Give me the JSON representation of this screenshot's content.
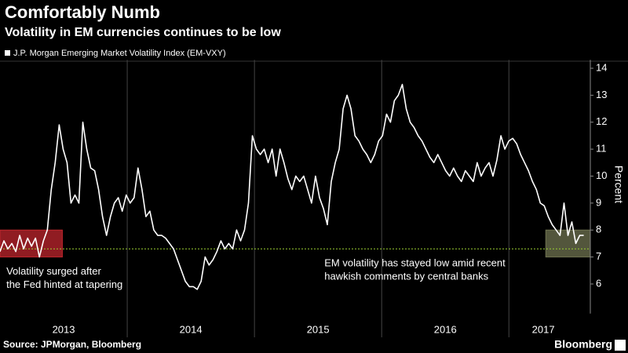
{
  "chart_data": {
    "type": "line",
    "title": "Comfortably Numb",
    "subtitle": "Volatility in EM currencies continues to be low",
    "y_label": "Percent",
    "source": "Source: JPMorgan, Bloomberg",
    "brand": "Bloomberg",
    "xlim": [
      2013,
      2017.64
    ],
    "xticks": [
      {
        "value": 2013,
        "label": "2013"
      },
      {
        "value": 2014,
        "label": "2014"
      },
      {
        "value": 2015,
        "label": "2015"
      },
      {
        "value": 2016,
        "label": "2016"
      },
      {
        "value": 2017,
        "label": "2017"
      }
    ],
    "ylim": [
      4.9,
      14.6
    ],
    "yticks": [
      6,
      7,
      8,
      9,
      10,
      11,
      12,
      13,
      14
    ],
    "reference_line": {
      "value": 7.3,
      "color": "#9acd32"
    },
    "highlights": [
      {
        "x": [
          2013,
          2013.49
        ],
        "y": [
          7,
          8
        ],
        "color": "#c0262d"
      },
      {
        "x": [
          2017.29,
          2017.64
        ],
        "y": [
          7,
          8
        ],
        "color": "#6f7350"
      }
    ],
    "annotations": [
      {
        "lines": [
          "Volatility surged after",
          "the Fed hinted at tapering"
        ],
        "x": 2013.05,
        "y": 6.45
      },
      {
        "lines": [
          "EM volatility has stayed low amid recent",
          "hawkish comments by central banks"
        ],
        "x": 2015.55,
        "y": 6.75
      }
    ],
    "series": [
      {
        "name": "J.P. Morgan Emerging Market Volatility Index (EM-VXY)",
        "color": "#ffffff",
        "x": [
          2013,
          2013.031,
          2013.062,
          2013.093,
          2013.124,
          2013.155,
          2013.186,
          2013.217,
          2013.248,
          2013.279,
          2013.31,
          2013.341,
          2013.372,
          2013.403,
          2013.434,
          2013.465,
          2013.496,
          2013.527,
          2013.558,
          2013.589,
          2013.62,
          2013.651,
          2013.682,
          2013.713,
          2013.744,
          2013.775,
          2013.806,
          2013.837,
          2013.868,
          2013.899,
          2013.93,
          2013.961,
          2013.992,
          2014.023,
          2014.054,
          2014.085,
          2014.116,
          2014.147,
          2014.178,
          2014.209,
          2014.24,
          2014.271,
          2014.302,
          2014.333,
          2014.364,
          2014.395,
          2014.426,
          2014.457,
          2014.488,
          2014.519,
          2014.55,
          2014.581,
          2014.612,
          2014.643,
          2014.674,
          2014.705,
          2014.736,
          2014.767,
          2014.798,
          2014.829,
          2014.86,
          2014.891,
          2014.922,
          2014.953,
          2014.984,
          2015.015,
          2015.046,
          2015.077,
          2015.108,
          2015.139,
          2015.17,
          2015.201,
          2015.232,
          2015.263,
          2015.294,
          2015.325,
          2015.356,
          2015.387,
          2015.418,
          2015.449,
          2015.48,
          2015.511,
          2015.542,
          2015.573,
          2015.604,
          2015.635,
          2015.666,
          2015.697,
          2015.728,
          2015.759,
          2015.79,
          2015.821,
          2015.852,
          2015.883,
          2015.914,
          2015.945,
          2015.976,
          2016.007,
          2016.038,
          2016.069,
          2016.1,
          2016.131,
          2016.162,
          2016.193,
          2016.224,
          2016.255,
          2016.286,
          2016.317,
          2016.348,
          2016.379,
          2016.41,
          2016.441,
          2016.472,
          2016.503,
          2016.534,
          2016.565,
          2016.596,
          2016.627,
          2016.658,
          2016.689,
          2016.72,
          2016.751,
          2016.782,
          2016.813,
          2016.844,
          2016.875,
          2016.906,
          2016.937,
          2016.968,
          2016.999,
          2017.03,
          2017.061,
          2017.092,
          2017.123,
          2017.154,
          2017.185,
          2017.216,
          2017.247,
          2017.278,
          2017.309,
          2017.34,
          2017.371,
          2017.402,
          2017.433,
          2017.464,
          2017.495,
          2017.526,
          2017.557,
          2017.588
        ],
        "values": [
          7.2,
          7.6,
          7.3,
          7.5,
          7.2,
          7.8,
          7.3,
          7.7,
          7.4,
          7.7,
          7.0,
          7.6,
          8.0,
          9.5,
          10.5,
          11.9,
          11.0,
          10.5,
          9.0,
          9.3,
          9.0,
          12.0,
          11.0,
          10.3,
          10.2,
          9.5,
          8.5,
          7.8,
          8.5,
          9.0,
          9.2,
          8.7,
          9.3,
          9.0,
          9.2,
          10.3,
          9.5,
          8.5,
          8.7,
          8.0,
          7.8,
          7.8,
          7.7,
          7.5,
          7.3,
          6.9,
          6.5,
          6.1,
          5.9,
          5.9,
          5.8,
          6.1,
          7.0,
          6.7,
          6.9,
          7.2,
          7.6,
          7.3,
          7.5,
          7.3,
          8.0,
          7.6,
          8.0,
          9.0,
          11.5,
          11.0,
          10.8,
          11.0,
          10.5,
          11.0,
          10.0,
          11.0,
          10.5,
          9.9,
          9.5,
          10.0,
          9.8,
          10.0,
          9.5,
          9.0,
          10.0,
          9.2,
          8.8,
          8.2,
          9.8,
          10.5,
          11.0,
          12.5,
          13.0,
          12.5,
          11.5,
          11.3,
          11.0,
          10.8,
          10.5,
          10.8,
          11.3,
          11.5,
          12.3,
          12.0,
          12.8,
          13.0,
          13.4,
          12.5,
          12.0,
          11.8,
          11.5,
          11.3,
          11.0,
          10.7,
          10.5,
          10.8,
          10.5,
          10.2,
          10.0,
          10.3,
          10.0,
          9.8,
          10.2,
          10.0,
          9.8,
          10.5,
          10.0,
          10.3,
          10.5,
          10.0,
          10.6,
          11.5,
          11.0,
          11.3,
          11.4,
          11.2,
          10.8,
          10.5,
          10.2,
          9.8,
          9.5,
          9.0,
          8.9,
          8.5,
          8.2,
          8.0,
          7.8,
          9.0,
          7.8,
          8.3,
          7.5,
          7.8,
          7.8
        ]
      }
    ]
  }
}
